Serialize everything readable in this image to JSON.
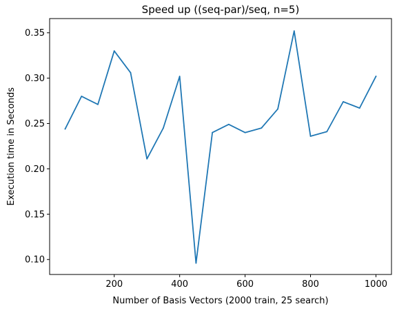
{
  "chart_data": {
    "type": "line",
    "title": "Speed up ((seq-par)/seq, n=5)",
    "xlabel": "Number of Basis Vectors (2000 train, 25 search)",
    "ylabel": "Execution time in Seconds",
    "xlim": [
      2.5,
      1047.5
    ],
    "ylim": [
      0.0835,
      0.3657
    ],
    "xticks": [
      200,
      400,
      600,
      800,
      1000
    ],
    "yticks": [
      0.1,
      0.15,
      0.2,
      0.25,
      0.3,
      0.35
    ],
    "xtick_labels": [
      "200",
      "400",
      "600",
      "800",
      "1000"
    ],
    "ytick_labels": [
      "0.10",
      "0.15",
      "0.20",
      "0.25",
      "0.30",
      "0.35"
    ],
    "grid": false,
    "series": [
      {
        "color": "#1f77b4",
        "x": [
          50,
          100,
          150,
          200,
          250,
          300,
          350,
          400,
          450,
          500,
          550,
          600,
          650,
          700,
          750,
          800,
          850,
          900,
          950,
          1000
        ],
        "y": [
          0.244,
          0.28,
          0.271,
          0.33,
          0.306,
          0.211,
          0.245,
          0.302,
          0.096,
          0.24,
          0.249,
          0.24,
          0.245,
          0.266,
          0.352,
          0.236,
          0.241,
          0.274,
          0.267,
          0.302
        ]
      }
    ]
  }
}
